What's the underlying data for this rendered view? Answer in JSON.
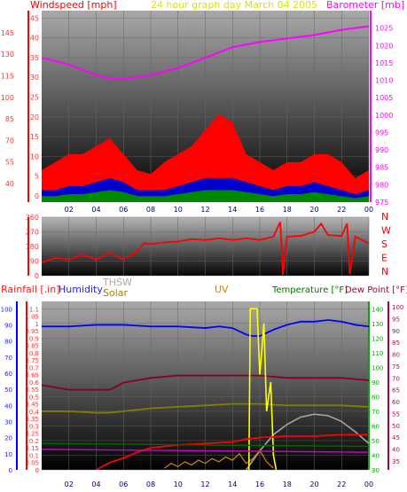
{
  "colors": {
    "wind": "#ff0000",
    "gust": "#0000cc",
    "wind_avg": "#008800",
    "barometer": "#ff00ff",
    "direction": "#ff0000",
    "rain": "#ff0000",
    "humidity": "#0000ff",
    "thsw": "#aaaaaa",
    "solar": "#cc8800",
    "uv": "#ffff00",
    "temperature": "#009900",
    "dewpoint": "#880022",
    "header_title": "#ffff00",
    "grid_line": "#666666"
  },
  "top_panel": {
    "left_label": "Windspeed [mph]",
    "title": "24 hour graph day   March 04 2005",
    "right_label": "Barometer [mb]"
  },
  "dir_panel": {
    "compass": [
      "N",
      "W",
      "S",
      "E",
      "N"
    ]
  },
  "bottom_panel": {
    "labels": {
      "rain": "Rainfall [.in]",
      "humidity": "Humidity",
      "thsw": "THSW",
      "solar": "Solar",
      "uv": "UV",
      "temperature": "Temperature [°F]",
      "dewpoint": "Dew Point [°F]"
    }
  },
  "chart_data": [
    {
      "type": "area",
      "title": "24 hour graph day   March 04 2005",
      "x_ticks": [
        "02",
        "04",
        "06",
        "08",
        "10",
        "12",
        "14",
        "16",
        "18",
        "20",
        "22",
        "00"
      ],
      "xlim": [
        0,
        24
      ],
      "y_left": {
        "label": "Windspeed [mph]",
        "ylim": [
          0,
          150
        ],
        "ticks": [
          "0",
          "5",
          "10",
          "15",
          "20",
          "25",
          "30",
          "35",
          "40",
          "45"
        ],
        "outer_ticks": [
          "40",
          "55",
          "70",
          "85",
          "100",
          "115",
          "130",
          "145"
        ]
      },
      "y_right": {
        "label": "Barometer [mb]",
        "ylim": [
          975,
          1030
        ],
        "ticks": [
          "975",
          "980",
          "985",
          "990",
          "995",
          "1000",
          "1005",
          "1010",
          "1015",
          "1020",
          "1025"
        ]
      },
      "series": [
        {
          "name": "Barometer [mb]",
          "axis": "right",
          "x": [
            0,
            2,
            4,
            5,
            6,
            8,
            10,
            12,
            14,
            16,
            18,
            20,
            22,
            24
          ],
          "values": [
            1016.5,
            1014.5,
            1011.5,
            1010.5,
            1010.3,
            1011.5,
            1013.5,
            1016.5,
            1019.5,
            1021.0,
            1022.0,
            1023.0,
            1024.5,
            1025.5
          ]
        },
        {
          "name": "Windspeed [mph]",
          "axis": "left",
          "x": [
            0,
            1,
            2,
            3,
            4,
            5,
            6,
            7,
            8,
            9,
            10,
            11,
            12,
            13,
            14,
            15,
            16,
            17,
            18,
            19,
            20,
            21,
            22,
            23,
            24
          ],
          "values": [
            3,
            3,
            4,
            4,
            5,
            6,
            5,
            3,
            3,
            3,
            4,
            5,
            6,
            6,
            6,
            5,
            4,
            3,
            4,
            4,
            5,
            4,
            3,
            2,
            3
          ],
          "gusts": [
            8,
            10,
            12,
            12,
            14,
            16,
            12,
            8,
            7,
            10,
            12,
            14,
            18,
            22,
            20,
            12,
            10,
            8,
            10,
            10,
            12,
            12,
            10,
            6,
            8
          ]
        }
      ]
    },
    {
      "type": "line",
      "x_ticks": [
        "02",
        "04",
        "06",
        "08",
        "10",
        "12",
        "14",
        "16",
        "18",
        "20",
        "22",
        "00"
      ],
      "xlim": [
        0,
        24
      ],
      "y_left": {
        "ylim": [
          0,
          360
        ],
        "ticks": [
          "0",
          "90",
          "180",
          "270",
          "360"
        ]
      },
      "y_right": {
        "ticks": [
          "N",
          "W",
          "S",
          "E",
          "N"
        ]
      },
      "series": [
        {
          "name": "Wind direction",
          "x": [
            0,
            1,
            2,
            3,
            4,
            5,
            6,
            7,
            7.5,
            8,
            9,
            10,
            11,
            12,
            13,
            14,
            15,
            16,
            17,
            17.5,
            17.7,
            18,
            19,
            20,
            20.5,
            21,
            22,
            22.4,
            22.6,
            23,
            24
          ],
          "values": [
            80,
            110,
            100,
            130,
            100,
            140,
            100,
            150,
            200,
            195,
            205,
            210,
            225,
            220,
            230,
            220,
            230,
            220,
            240,
            330,
            5,
            240,
            245,
            270,
            320,
            250,
            245,
            320,
            10,
            240,
            200
          ]
        }
      ]
    },
    {
      "type": "line",
      "x_ticks": [
        "02",
        "04",
        "06",
        "08",
        "10",
        "12",
        "14",
        "16",
        "18",
        "20",
        "22",
        "00"
      ],
      "xlim": [
        0,
        24
      ],
      "y_left": {
        "label": "Rainfall [.in]",
        "ylim": [
          0,
          1.15
        ],
        "ticks": [
          "0",
          "0.05",
          "0.1",
          "0.15",
          "0.2",
          "0.25",
          "0.3",
          "0.35",
          "0.4",
          "0.45",
          "0.5",
          "0.55",
          "0.6",
          "0.65",
          "0.7",
          "0.75",
          "0.8",
          "0.85",
          "0.9",
          "0.95",
          "1",
          "1.05",
          "1.1"
        ],
        "outer_ticks": [
          "0",
          "10",
          "20",
          "30",
          "40",
          "50",
          "60",
          "70",
          "80",
          "90",
          "100"
        ]
      },
      "y_right": {
        "label": "Temperature [°F]",
        "ylim": [
          30,
          145
        ],
        "ticks": [
          "30",
          "40",
          "50",
          "60",
          "70",
          "80",
          "90",
          "100",
          "110",
          "120",
          "130",
          "140"
        ],
        "outer_label": "Dew Point [°F]",
        "outer_ticks": [
          "35",
          "40",
          "45",
          "50",
          "55",
          "60",
          "65",
          "70",
          "75",
          "80",
          "85",
          "90",
          "95",
          "100"
        ]
      },
      "series": [
        {
          "name": "Humidity",
          "axis": "outer-left",
          "x": [
            0,
            2,
            4,
            6,
            8,
            10,
            12,
            13,
            14,
            15,
            15.5,
            16,
            17,
            18,
            19,
            20,
            21,
            22,
            23,
            24
          ],
          "values": [
            89,
            89,
            90,
            90,
            89,
            89,
            88,
            89,
            88,
            84,
            83,
            83,
            87,
            90,
            92,
            92,
            93,
            92,
            90,
            89
          ]
        },
        {
          "name": "Dew Point [°F]",
          "axis": "outer-right",
          "x": [
            0,
            2,
            4,
            5,
            6,
            8,
            10,
            12,
            14,
            16,
            18,
            20,
            22,
            24
          ],
          "values": [
            67,
            65,
            65,
            65,
            68,
            70,
            71,
            71,
            71,
            71,
            70,
            70,
            70,
            69
          ]
        },
        {
          "name": "Temperature [°F]",
          "axis": "right",
          "x": [
            0,
            2,
            4,
            5,
            6,
            8,
            10,
            12,
            14,
            16,
            18,
            20,
            22,
            24
          ],
          "values": [
            70,
            70,
            69,
            69,
            70,
            72,
            73,
            74,
            75,
            75,
            74,
            74,
            74,
            73
          ]
        },
        {
          "name": "THSW",
          "axis": "right",
          "x": [
            15,
            16,
            17,
            18,
            19,
            20,
            21,
            22,
            23,
            24
          ],
          "values": [
            30,
            43,
            54,
            61,
            66,
            68,
            67,
            63,
            56,
            48
          ]
        },
        {
          "name": "Solar",
          "axis": "outer-left",
          "x": [
            9,
            9.5,
            10,
            10.5,
            11,
            11.5,
            12,
            12.5,
            13,
            13.5,
            14,
            14.5,
            15,
            15.5,
            16,
            16.5,
            17
          ],
          "values": [
            1,
            4,
            2,
            5,
            3,
            6,
            4,
            7,
            5,
            8,
            6,
            10,
            4,
            7,
            12,
            5,
            1
          ]
        },
        {
          "name": "UV",
          "axis": "left",
          "x": [
            15.2,
            15.3,
            15.5,
            15.8,
            16,
            16.3,
            16.5,
            16.8,
            17,
            17.2
          ],
          "values": [
            0,
            1.1,
            1.1,
            1.1,
            0.65,
            1.0,
            0.4,
            0.6,
            0.1,
            0
          ],
          "_note": ""
        },
        {
          "name": "Rainfall [.in]",
          "axis": "left",
          "x": [
            4,
            5,
            6,
            7,
            8,
            10,
            12,
            14,
            15,
            16,
            18,
            20,
            22,
            24
          ],
          "values": [
            0,
            0.05,
            0.08,
            0.12,
            0.15,
            0.17,
            0.18,
            0.19,
            0.21,
            0.22,
            0.23,
            0.23,
            0.24,
            0.24
          ]
        }
      ]
    }
  ]
}
